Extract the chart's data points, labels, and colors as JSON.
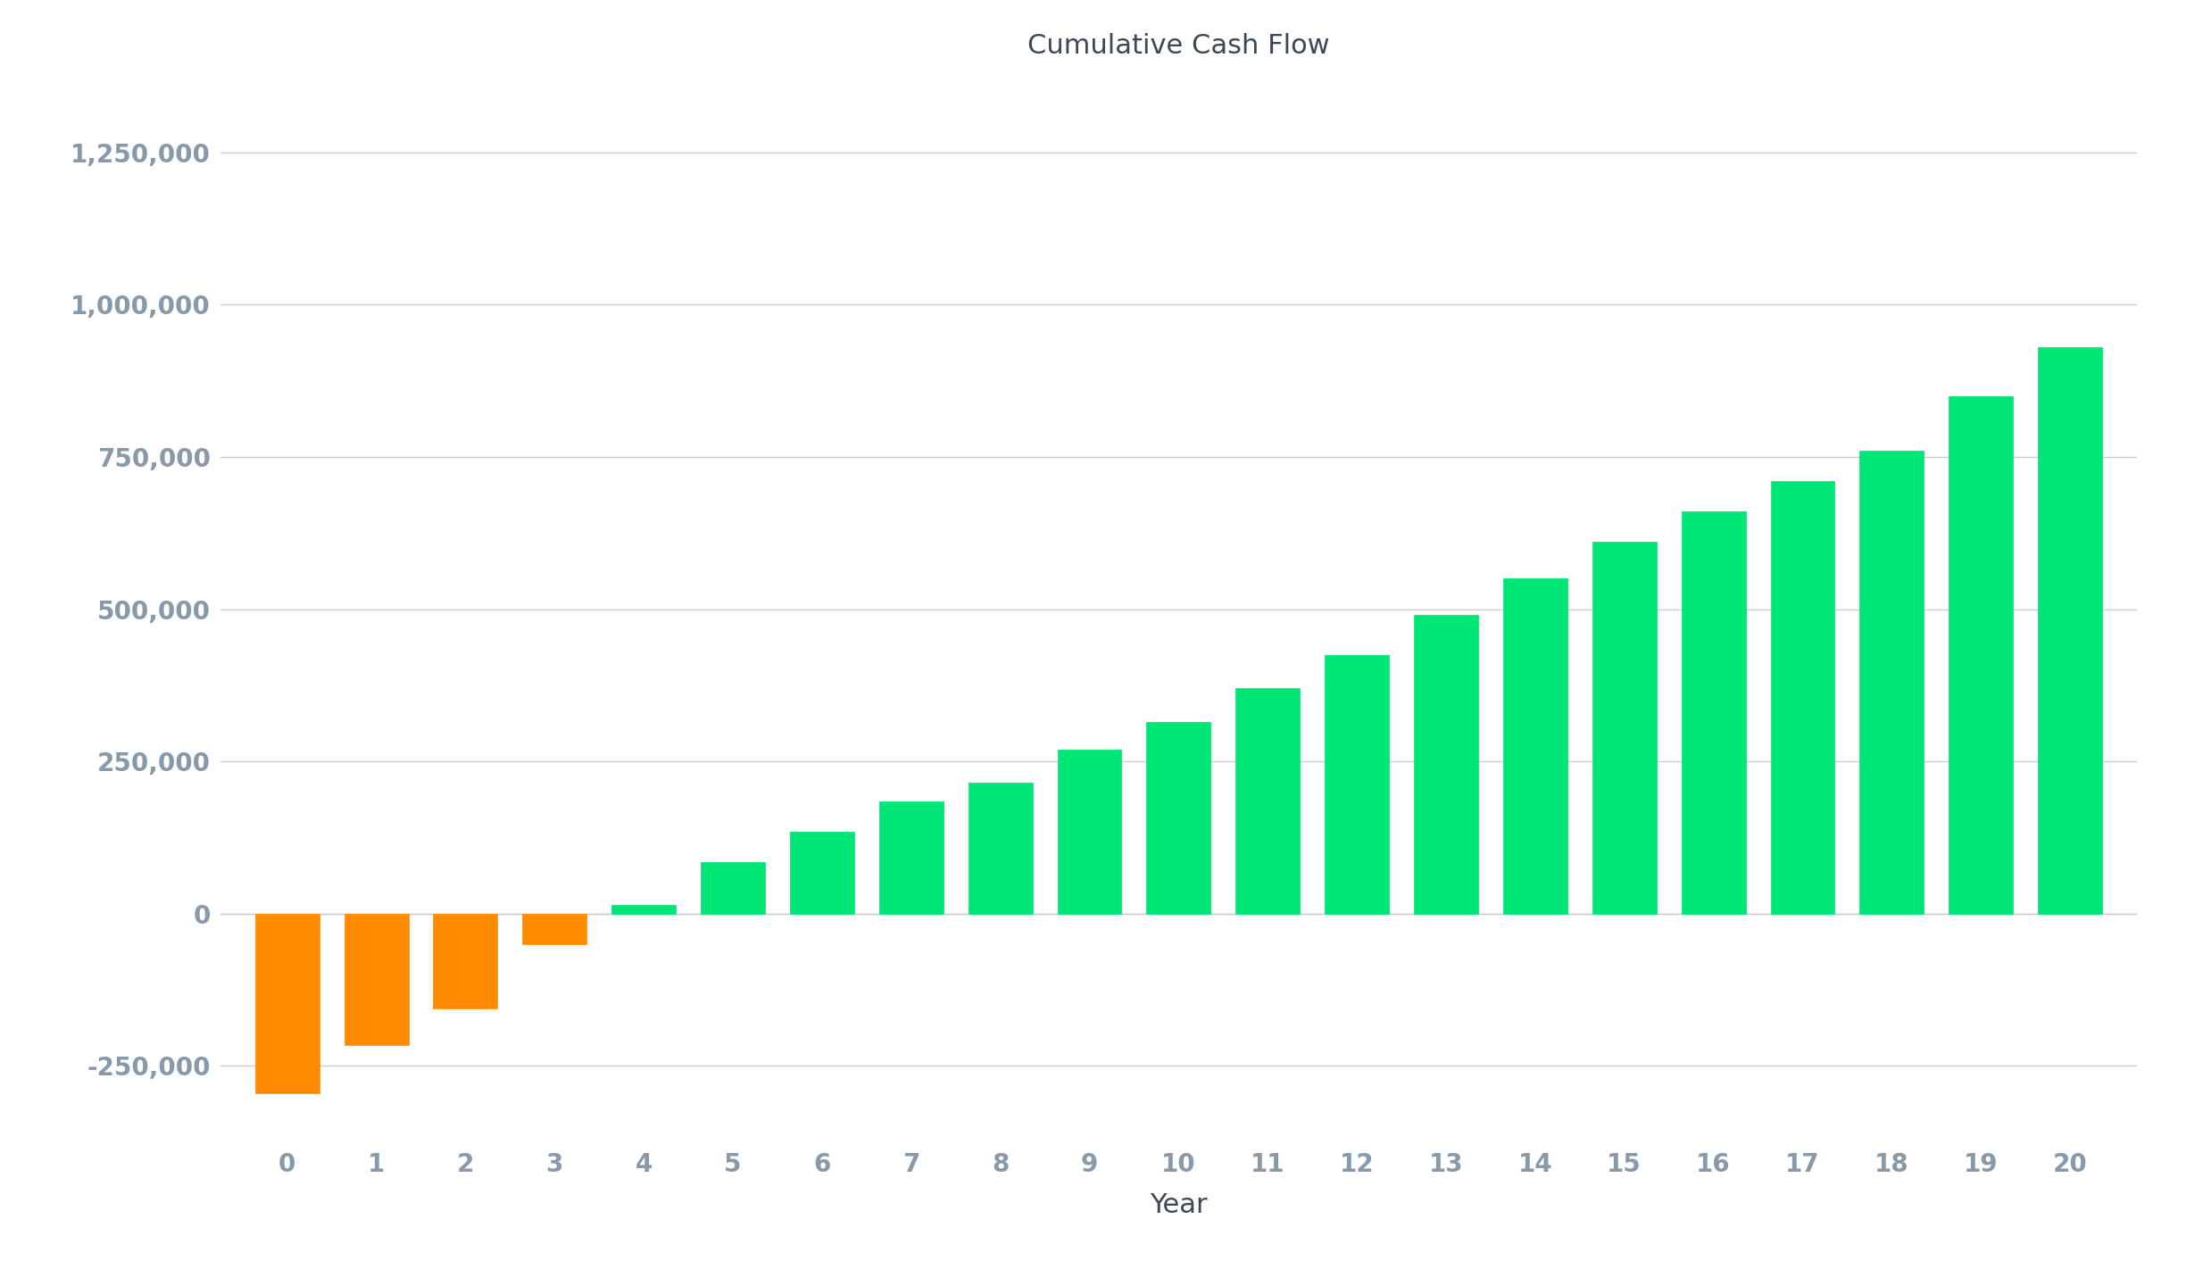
{
  "title": "Cumulative Cash Flow",
  "xlabel": "Year",
  "ylabel": "",
  "years": [
    0,
    1,
    2,
    3,
    4,
    5,
    6,
    7,
    8,
    9,
    10,
    11,
    12,
    13,
    14,
    15,
    16,
    17,
    18,
    19,
    20
  ],
  "values": [
    -295000,
    -215000,
    -155000,
    -50000,
    15000,
    85000,
    135000,
    185000,
    215000,
    270000,
    315000,
    370000,
    425000,
    490000,
    550000,
    610000,
    660000,
    710000,
    760000,
    850000,
    930000
  ],
  "bar_colors_negative": "#FF8C00",
  "bar_colors_positive": "#00E676",
  "background_color": "#FFFFFF",
  "grid_color": "#CCCCCC",
  "title_color": "#3C4757",
  "tick_label_color": "#8899AA",
  "axis_label_color": "#3C4757",
  "ylim": [
    -375000,
    1375000
  ],
  "yticks": [
    -250000,
    0,
    250000,
    500000,
    750000,
    1000000,
    1250000
  ],
  "title_fontsize": 22,
  "tick_fontsize": 20,
  "label_fontsize": 22
}
